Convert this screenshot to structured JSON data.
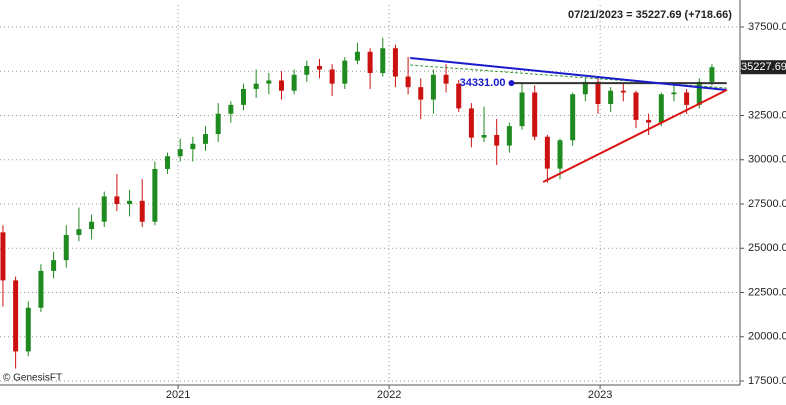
{
  "chart_data": {
    "type": "candlestick",
    "header": "07/21/2023 = 35227.69 (+718.66)",
    "watermark": "© GenesisFT",
    "xlim": [
      2020.156,
      2023.663
    ],
    "xticks": [
      2021,
      2022,
      2023
    ],
    "ylim": [
      17274,
      38743
    ],
    "yticks": [
      {
        "value": 17500,
        "label": "17500.00"
      },
      {
        "value": 20000,
        "label": "20000.00"
      },
      {
        "value": 22500,
        "label": "22500.00"
      },
      {
        "value": 25000,
        "label": "25000.00"
      },
      {
        "value": 27500,
        "label": "27500.00"
      },
      {
        "value": 30000,
        "label": "30000.00"
      },
      {
        "value": 32500,
        "label": "32500.00"
      },
      {
        "value": 35000,
        "label": "35000.00"
      },
      {
        "value": 37500,
        "label": "37500.00"
      }
    ],
    "grid": true,
    "up_color": "#1f8a1f",
    "down_color": "#cc1111",
    "x": [
      2020.17,
      2020.23,
      2020.29,
      2020.35,
      2020.41,
      2020.47,
      2020.53,
      2020.59,
      2020.65,
      2020.71,
      2020.77,
      2020.83,
      2020.89,
      2020.95,
      2021.01,
      2021.07,
      2021.13,
      2021.19,
      2021.25,
      2021.31,
      2021.37,
      2021.43,
      2021.49,
      2021.55,
      2021.61,
      2021.67,
      2021.73,
      2021.79,
      2021.85,
      2021.91,
      2021.97,
      2022.03,
      2022.09,
      2022.15,
      2022.21,
      2022.27,
      2022.33,
      2022.39,
      2022.45,
      2022.51,
      2022.57,
      2022.63,
      2022.69,
      2022.75,
      2022.81,
      2022.87,
      2022.93,
      2022.99,
      2023.05,
      2023.11,
      2023.17,
      2023.23,
      2023.29,
      2023.35,
      2023.41,
      2023.47,
      2023.53
    ],
    "open": [
      25900,
      23185,
      19170,
      21640,
      23720,
      24330,
      25750,
      26080,
      26500,
      27930,
      27500,
      27680,
      26500,
      29480,
      30200,
      30600,
      30900,
      31450,
      32600,
      33100,
      34000,
      34300,
      34480,
      33900,
      34800,
      35300,
      35100,
      34300,
      35600,
      36100,
      34900,
      36300,
      34700,
      34100,
      33400,
      34800,
      34300,
      32900,
      31250,
      31400,
      30800,
      31900,
      33800,
      31300,
      29500,
      31100,
      33700,
      34400,
      33150,
      33900,
      33800,
      32250,
      32100,
      33700,
      33800,
      33100,
      34400
    ],
    "high": [
      26300,
      23400,
      22000,
      24100,
      24800,
      26300,
      27300,
      26900,
      28200,
      29200,
      28300,
      28900,
      29900,
      30400,
      31200,
      31300,
      31900,
      33200,
      33300,
      34300,
      35100,
      34900,
      35000,
      35100,
      35600,
      35700,
      35400,
      35800,
      36600,
      36300,
      36900,
      36500,
      35800,
      34600,
      35100,
      35400,
      34500,
      33200,
      33000,
      32300,
      32100,
      34300,
      34200,
      31400,
      31200,
      33800,
      34600,
      34700,
      34100,
      34300,
      33900,
      32600,
      33800,
      34300,
      34000,
      34600,
      35400
    ],
    "low": [
      21700,
      18200,
      18900,
      21400,
      23300,
      23900,
      25400,
      25500,
      26200,
      27100,
      26800,
      26200,
      26300,
      29200,
      29900,
      29900,
      30500,
      31000,
      32100,
      32800,
      33500,
      33700,
      33400,
      33700,
      34400,
      34600,
      33600,
      34000,
      35400,
      34000,
      34700,
      34100,
      33700,
      32300,
      32600,
      33800,
      32700,
      30700,
      31000,
      29700,
      30400,
      31700,
      31100,
      28700,
      28900,
      30800,
      33300,
      32600,
      32700,
      33300,
      31800,
      31400,
      31900,
      33300,
      32600,
      32900,
      34200
    ],
    "close": [
      23185,
      19170,
      21640,
      23720,
      24330,
      25750,
      26080,
      26500,
      27930,
      27500,
      27680,
      26500,
      29480,
      30200,
      30600,
      30900,
      31450,
      32600,
      33100,
      34000,
      34300,
      34480,
      33900,
      34800,
      35300,
      35100,
      34300,
      35600,
      36100,
      34900,
      36300,
      34700,
      34100,
      33400,
      34800,
      34300,
      32900,
      31250,
      31400,
      30800,
      31900,
      33800,
      31300,
      29500,
      31100,
      33700,
      34400,
      33150,
      33900,
      33800,
      32250,
      32100,
      33700,
      33800,
      33100,
      34400,
      35227.69
    ],
    "level": {
      "x": 2022.58,
      "value": 34331,
      "label": "34331.00"
    },
    "lines": [
      {
        "x": [
          2022.58,
          2023.6
        ],
        "y": [
          34331,
          34331
        ],
        "color": "#333333",
        "style": "solid"
      },
      {
        "x": [
          2022.1,
          2023.6
        ],
        "y": [
          35350,
          34050
        ],
        "color": "#2e9a2e",
        "style": "dashed"
      },
      {
        "x": [
          2022.1,
          2023.6
        ],
        "y": [
          35749,
          33941
        ],
        "color": "#1a1acc",
        "style": "solid"
      },
      {
        "x": [
          2022.73,
          2023.6
        ],
        "y": [
          28743,
          33941
        ],
        "color": "#dd1111",
        "style": "solid"
      }
    ]
  }
}
